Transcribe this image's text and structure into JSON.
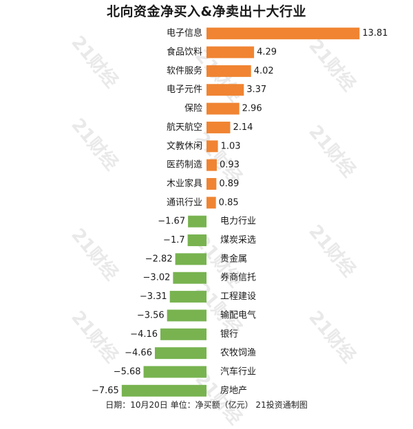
{
  "watermark_text": "21财经",
  "chart_data": {
    "type": "bar",
    "orientation": "horizontal",
    "title": "北向资金净买入&净卖出十大行业",
    "categories": [
      "电子信息",
      "食品饮料",
      "软件服务",
      "电子元件",
      "保险",
      "航天航空",
      "文教休闲",
      "医药制造",
      "木业家具",
      "通讯行业",
      "电力行业",
      "煤炭采选",
      "贵金属",
      "券商信托",
      "工程建设",
      "输配电气",
      "银行",
      "农牧饲渔",
      "汽车行业",
      "房地产"
    ],
    "values": [
      13.81,
      4.29,
      4.02,
      3.37,
      2.96,
      2.14,
      1.03,
      0.93,
      0.89,
      0.85,
      -1.67,
      -1.7,
      -2.82,
      -3.02,
      -3.31,
      -3.56,
      -4.16,
      -4.66,
      -5.68,
      -7.65
    ],
    "value_labels": [
      "13.81",
      "4.29",
      "4.02",
      "3.37",
      "2.96",
      "2.14",
      "1.03",
      "0.93",
      "0.89",
      "0.85",
      "−1.67",
      "−1.7",
      "−2.82",
      "−3.02",
      "−3.31",
      "−3.56",
      "−4.16",
      "−4.66",
      "−5.68",
      "−7.65"
    ],
    "colors": {
      "positive": "#f08432",
      "negative": "#78b350"
    },
    "grid": false,
    "legend": "none",
    "footer": "日期：10月20日 单位：净买额（亿元） 21投资通制图"
  }
}
